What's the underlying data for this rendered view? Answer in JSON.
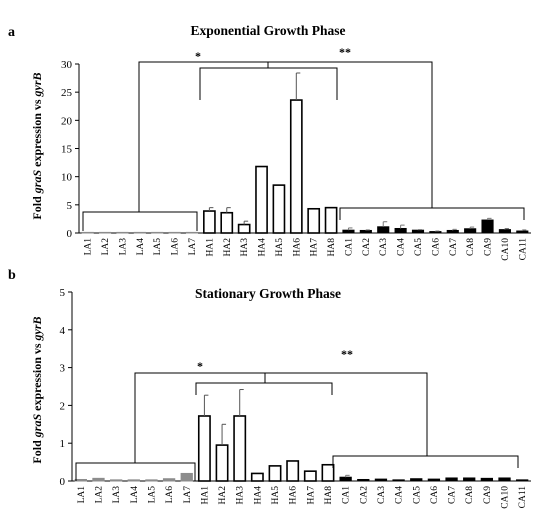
{
  "chart_data": [
    {
      "type": "bar",
      "panel_label": "a",
      "title": "Exponential Growth Phase",
      "ylabel": {
        "pre": "Fold ",
        "gene": "graS",
        "mid": " expression vs ",
        "ref": "gyrB"
      },
      "ylim": [
        0,
        30
      ],
      "yticks": [
        "0",
        "5",
        "10",
        "15",
        "20",
        "25",
        "30"
      ],
      "grid": false,
      "categories": [
        "LA1",
        "LA2",
        "LA3",
        "LA4",
        "LA5",
        "LA6",
        "LA7",
        "HA1",
        "HA2",
        "HA3",
        "HA4",
        "HA5",
        "HA6",
        "HA7",
        "HA8",
        "CA1",
        "CA2",
        "CA3",
        "CA4",
        "CA5",
        "CA6",
        "CA7",
        "CA8",
        "CA9",
        "CA10",
        "CA11"
      ],
      "groups": [
        "LA",
        "LA",
        "LA",
        "LA",
        "LA",
        "LA",
        "LA",
        "HA",
        "HA",
        "HA",
        "HA",
        "HA",
        "HA",
        "HA",
        "HA",
        "CA",
        "CA",
        "CA",
        "CA",
        "CA",
        "CA",
        "CA",
        "CA",
        "CA",
        "CA",
        "CA"
      ],
      "values": [
        0.05,
        0.05,
        0.05,
        0.05,
        0.05,
        0.05,
        0.05,
        3.9,
        3.6,
        1.5,
        11.8,
        8.5,
        23.6,
        4.3,
        4.5,
        0.5,
        0.45,
        1.1,
        0.8,
        0.5,
        0.25,
        0.45,
        0.75,
        2.3,
        0.6,
        0.35
      ],
      "errors": [
        0,
        0,
        0,
        0,
        0,
        0,
        0,
        0.6,
        0.9,
        0.6,
        0,
        0,
        4.8,
        0,
        0,
        0.4,
        0.1,
        0.9,
        0.6,
        0.1,
        0.1,
        0.2,
        0.3,
        0.3,
        0.2,
        0.2
      ],
      "significance": [
        "*",
        "**"
      ],
      "group_colors": {
        "LA": "#8c8c8c",
        "HA": "#ffffff",
        "CA": "#000000"
      }
    },
    {
      "type": "bar",
      "panel_label": "b",
      "title": "Stationary Growth Phase",
      "ylabel": {
        "pre": "Fold ",
        "gene": "graS",
        "mid": " expression vs ",
        "ref": "gyrB"
      },
      "ylim": [
        0,
        5
      ],
      "yticks": [
        "0",
        "1",
        "2",
        "3",
        "4",
        "5"
      ],
      "grid": false,
      "categories": [
        "LA1",
        "LA2",
        "LA3",
        "LA4",
        "LA5",
        "LA6",
        "LA7",
        "HA1",
        "HA2",
        "HA3",
        "HA4",
        "HA5",
        "HA6",
        "HA7",
        "HA8",
        "CA1",
        "CA2",
        "CA3",
        "CA4",
        "CA5",
        "CA6",
        "CA7",
        "CA8",
        "CA9",
        "CA10",
        "CA11"
      ],
      "groups": [
        "LA",
        "LA",
        "LA",
        "LA",
        "LA",
        "LA",
        "LA",
        "HA",
        "HA",
        "HA",
        "HA",
        "HA",
        "HA",
        "HA",
        "HA",
        "CA",
        "CA",
        "CA",
        "CA",
        "CA",
        "CA",
        "CA",
        "CA",
        "CA",
        "CA",
        "CA"
      ],
      "values": [
        0.04,
        0.07,
        0.03,
        0.03,
        0.03,
        0.06,
        0.2,
        1.72,
        0.95,
        1.72,
        0.2,
        0.4,
        0.53,
        0.26,
        0.43,
        0.1,
        0.04,
        0.05,
        0.03,
        0.06,
        0.05,
        0.08,
        0.08,
        0.07,
        0.08,
        0.03
      ],
      "errors": [
        0,
        0,
        0,
        0,
        0,
        0,
        0,
        0.55,
        0.55,
        0.7,
        0,
        0,
        0,
        0,
        0,
        0.05,
        0,
        0,
        0,
        0,
        0,
        0,
        0,
        0,
        0,
        0
      ],
      "significance": [
        "*",
        "**"
      ],
      "group_colors": {
        "LA": "#8c8c8c",
        "HA": "#ffffff",
        "CA": "#000000"
      }
    }
  ]
}
